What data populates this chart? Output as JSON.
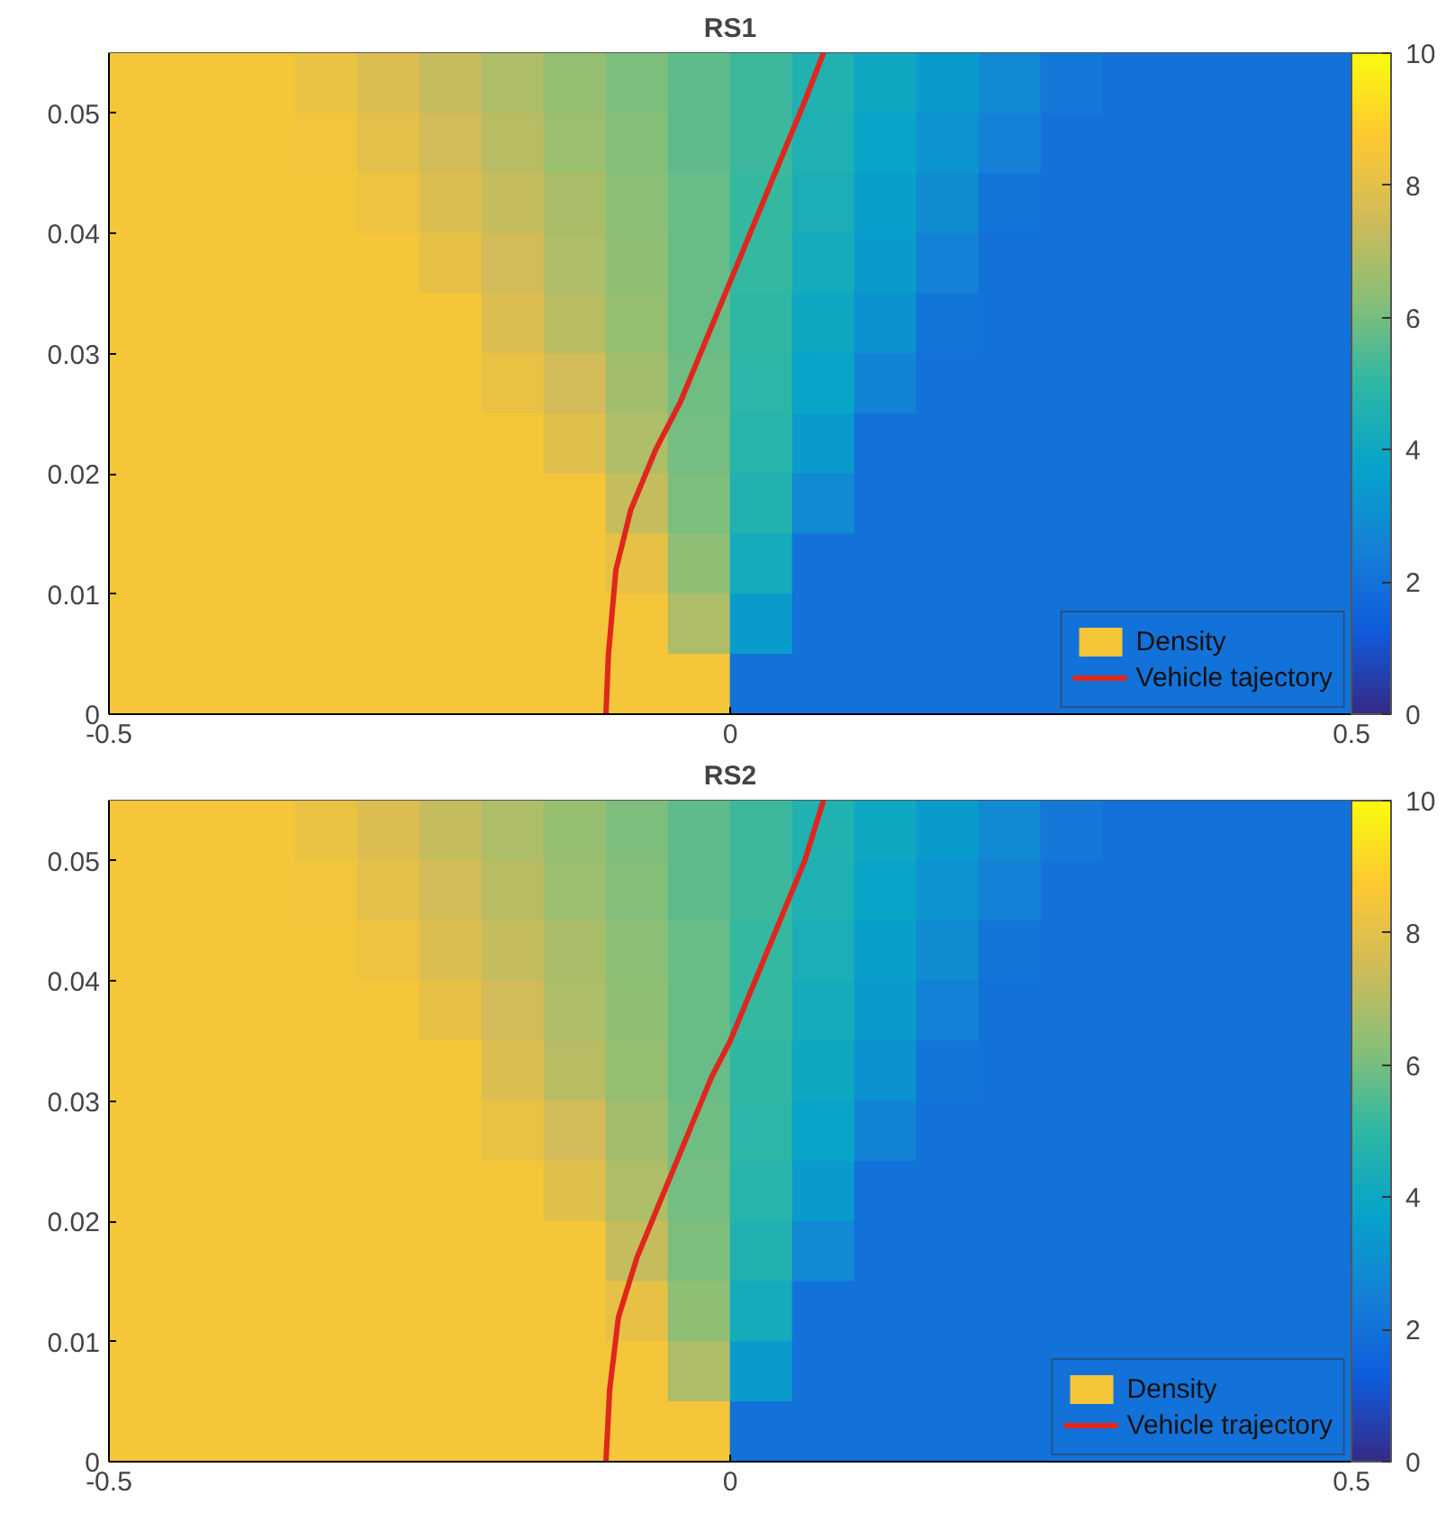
{
  "chart_data": [
    {
      "type": "heatmap",
      "title": "RS1",
      "xlim": [
        -0.5,
        0.5
      ],
      "xticks": [
        -0.5,
        0,
        0.5
      ],
      "ylim": [
        0,
        0.055
      ],
      "yticks": [
        0,
        0.01,
        0.02,
        0.03,
        0.04,
        0.05
      ],
      "clim": [
        0,
        10
      ],
      "cticks": [
        0,
        2,
        4,
        6,
        8,
        10
      ],
      "legend": "bottom right",
      "x": [
        -0.475,
        -0.425,
        -0.375,
        -0.325,
        -0.275,
        -0.225,
        -0.175,
        -0.125,
        -0.075,
        -0.025,
        0.025,
        0.075,
        0.125,
        0.175,
        0.225,
        0.275,
        0.325,
        0.375,
        0.425,
        0.475
      ],
      "y": [
        0.0525,
        0.0475,
        0.0425,
        0.0375,
        0.0325,
        0.0275,
        0.0225,
        0.0175,
        0.0125,
        0.0075,
        0.0025
      ],
      "clabel": "Density",
      "cells": [
        [
          8.5,
          8.5,
          8.5,
          8.2,
          7.8,
          7.3,
          6.9,
          6.5,
          6.1,
          5.7,
          5.2,
          4.6,
          4.0,
          3.4,
          2.8,
          2.2,
          2,
          2,
          2,
          2
        ],
        [
          8.5,
          8.5,
          8.5,
          8.4,
          8.0,
          7.5,
          7.1,
          6.6,
          6.2,
          5.7,
          5.2,
          4.5,
          3.8,
          3.2,
          2.5,
          2,
          2,
          2,
          2,
          2
        ],
        [
          8.5,
          8.5,
          8.5,
          8.5,
          8.3,
          7.8,
          7.3,
          6.8,
          6.3,
          5.8,
          5.1,
          4.4,
          3.6,
          2.9,
          2.1,
          2,
          2,
          2,
          2,
          2
        ],
        [
          8.5,
          8.5,
          8.5,
          8.5,
          8.5,
          8.1,
          7.5,
          6.9,
          6.4,
          5.8,
          5.1,
          4.2,
          3.4,
          2.5,
          2,
          2,
          2,
          2,
          2,
          2
        ],
        [
          8.5,
          8.5,
          8.5,
          8.5,
          8.5,
          8.5,
          7.8,
          7.1,
          6.5,
          5.8,
          5.0,
          4.0,
          3.1,
          2.1,
          2,
          2,
          2,
          2,
          2,
          2
        ],
        [
          8.5,
          8.5,
          8.5,
          8.5,
          8.5,
          8.5,
          8.2,
          7.5,
          6.7,
          5.9,
          4.9,
          3.8,
          2.6,
          2,
          2,
          2,
          2,
          2,
          2,
          2
        ],
        [
          8.5,
          8.5,
          8.5,
          8.5,
          8.5,
          8.5,
          8.5,
          7.9,
          6.9,
          6.0,
          4.8,
          3.4,
          2,
          2,
          2,
          2,
          2,
          2,
          2,
          2
        ],
        [
          8.5,
          8.5,
          8.5,
          8.5,
          8.5,
          8.5,
          8.5,
          8.5,
          7.3,
          6.1,
          4.6,
          2.8,
          2,
          2,
          2,
          2,
          2,
          2,
          2,
          2
        ],
        [
          8.5,
          8.5,
          8.5,
          8.5,
          8.5,
          8.5,
          8.5,
          8.5,
          8.1,
          6.4,
          4.2,
          2,
          2,
          2,
          2,
          2,
          2,
          2,
          2,
          2
        ],
        [
          8.5,
          8.5,
          8.5,
          8.5,
          8.5,
          8.5,
          8.5,
          8.5,
          8.5,
          6.9,
          3.4,
          2,
          2,
          2,
          2,
          2,
          2,
          2,
          2,
          2
        ],
        [
          8.5,
          8.5,
          8.5,
          8.5,
          8.5,
          8.5,
          8.5,
          8.5,
          8.5,
          8.5,
          2,
          2,
          2,
          2,
          2,
          2,
          2,
          2,
          2,
          2
        ]
      ],
      "series": [
        {
          "type": "line",
          "name": "Vehicle tajectory",
          "color": "#e0261d",
          "x": [
            -0.1,
            -0.098,
            -0.092,
            -0.08,
            -0.06,
            -0.04,
            -0.02,
            0,
            0.02,
            0.04,
            0.06,
            0.075
          ],
          "values": [
            0,
            0.005,
            0.012,
            0.017,
            0.022,
            0.026,
            0.031,
            0.036,
            0.041,
            0.046,
            0.051,
            0.055
          ]
        }
      ]
    },
    {
      "type": "heatmap",
      "title": "RS2",
      "xlim": [
        -0.5,
        0.5
      ],
      "xticks": [
        -0.5,
        0,
        0.5
      ],
      "ylim": [
        0,
        0.055
      ],
      "yticks": [
        0,
        0.01,
        0.02,
        0.03,
        0.04,
        0.05
      ],
      "clim": [
        0,
        10
      ],
      "cticks": [
        0,
        2,
        4,
        6,
        8,
        10
      ],
      "legend": "bottom right",
      "x": [
        -0.475,
        -0.425,
        -0.375,
        -0.325,
        -0.275,
        -0.225,
        -0.175,
        -0.125,
        -0.075,
        -0.025,
        0.025,
        0.075,
        0.125,
        0.175,
        0.225,
        0.275,
        0.325,
        0.375,
        0.425,
        0.475
      ],
      "y": [
        0.0525,
        0.0475,
        0.0425,
        0.0375,
        0.0325,
        0.0275,
        0.0225,
        0.0175,
        0.0125,
        0.0075,
        0.0025
      ],
      "clabel": "Density",
      "cells": [
        [
          8.5,
          8.5,
          8.5,
          8.2,
          7.8,
          7.3,
          6.9,
          6.5,
          6.1,
          5.7,
          5.2,
          4.6,
          4.0,
          3.4,
          2.8,
          2.2,
          2,
          2,
          2,
          2
        ],
        [
          8.5,
          8.5,
          8.5,
          8.4,
          8.0,
          7.5,
          7.1,
          6.6,
          6.2,
          5.7,
          5.2,
          4.5,
          3.8,
          3.2,
          2.5,
          2,
          2,
          2,
          2,
          2
        ],
        [
          8.5,
          8.5,
          8.5,
          8.5,
          8.3,
          7.8,
          7.3,
          6.8,
          6.3,
          5.8,
          5.1,
          4.4,
          3.6,
          2.9,
          2.1,
          2,
          2,
          2,
          2,
          2
        ],
        [
          8.5,
          8.5,
          8.5,
          8.5,
          8.5,
          8.1,
          7.5,
          6.9,
          6.4,
          5.8,
          5.1,
          4.2,
          3.4,
          2.5,
          2,
          2,
          2,
          2,
          2,
          2
        ],
        [
          8.5,
          8.5,
          8.5,
          8.5,
          8.5,
          8.5,
          7.8,
          7.1,
          6.5,
          5.8,
          5.0,
          4.0,
          3.1,
          2.1,
          2,
          2,
          2,
          2,
          2,
          2
        ],
        [
          8.5,
          8.5,
          8.5,
          8.5,
          8.5,
          8.5,
          8.2,
          7.5,
          6.7,
          5.9,
          4.9,
          3.8,
          2.6,
          2,
          2,
          2,
          2,
          2,
          2,
          2
        ],
        [
          8.5,
          8.5,
          8.5,
          8.5,
          8.5,
          8.5,
          8.5,
          7.9,
          6.9,
          6.0,
          4.8,
          3.4,
          2,
          2,
          2,
          2,
          2,
          2,
          2,
          2
        ],
        [
          8.5,
          8.5,
          8.5,
          8.5,
          8.5,
          8.5,
          8.5,
          8.5,
          7.3,
          6.1,
          4.6,
          2.8,
          2,
          2,
          2,
          2,
          2,
          2,
          2,
          2
        ],
        [
          8.5,
          8.5,
          8.5,
          8.5,
          8.5,
          8.5,
          8.5,
          8.5,
          8.1,
          6.4,
          4.2,
          2,
          2,
          2,
          2,
          2,
          2,
          2,
          2,
          2
        ],
        [
          8.5,
          8.5,
          8.5,
          8.5,
          8.5,
          8.5,
          8.5,
          8.5,
          8.5,
          6.9,
          3.4,
          2,
          2,
          2,
          2,
          2,
          2,
          2,
          2,
          2
        ],
        [
          8.5,
          8.5,
          8.5,
          8.5,
          8.5,
          8.5,
          8.5,
          8.5,
          8.5,
          8.5,
          2,
          2,
          2,
          2,
          2,
          2,
          2,
          2,
          2,
          2
        ]
      ],
      "series": [
        {
          "type": "line",
          "name": "Vehicle trajectory",
          "color": "#e0261d",
          "x": [
            -0.1,
            -0.097,
            -0.09,
            -0.075,
            -0.055,
            -0.035,
            -0.015,
            0,
            0.02,
            0.04,
            0.06,
            0.075
          ],
          "values": [
            0,
            0.006,
            0.012,
            0.017,
            0.022,
            0.027,
            0.032,
            0.035,
            0.04,
            0.045,
            0.05,
            0.055
          ]
        }
      ]
    }
  ]
}
